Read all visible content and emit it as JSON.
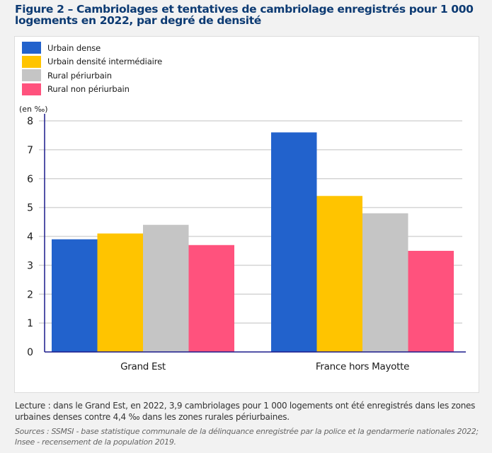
{
  "figure": {
    "title": "Figure 2 – Cambriolages et tentatives de cambriolage enregistrés pour 1 000 logements en 2022, par degré de densité",
    "note": "Lecture : dans le Grand Est, en 2022, 3,9 cambriolages pour 1 000 logements ont été enregistrés dans les zones urbaines denses contre 4,4 ‰ dans les zones rurales périurbaines.",
    "sources": "Sources : SSMSI - base statistique communale de la délinquance enregistrée par la police et la gendarmerie nationales 2022; Insee - recensement de la population 2019."
  },
  "chart_data": {
    "type": "bar",
    "title": "Cambriolages et tentatives de cambriolage enregistrés pour 1 000 logements en 2022, par degré de densité",
    "xlabel": "",
    "ylabel": "(en ‰)",
    "ylim": [
      0,
      8
    ],
    "yticks": [
      0,
      1,
      2,
      3,
      4,
      5,
      6,
      7,
      8
    ],
    "grid": true,
    "legend_position": "top-left",
    "categories": [
      "Grand Est",
      "France hors Mayotte"
    ],
    "series": [
      {
        "name": "Urbain dense",
        "color": "#2262cc",
        "values": [
          3.9,
          7.6
        ]
      },
      {
        "name": "Urbain densité intermédiaire",
        "color": "#ffc400",
        "values": [
          4.1,
          5.4
        ]
      },
      {
        "name": "Rural périurbain",
        "color": "#c5c5c5",
        "values": [
          4.4,
          4.8
        ]
      },
      {
        "name": "Rural non périurbain",
        "color": "#ff527d",
        "values": [
          3.7,
          3.5
        ]
      }
    ]
  }
}
